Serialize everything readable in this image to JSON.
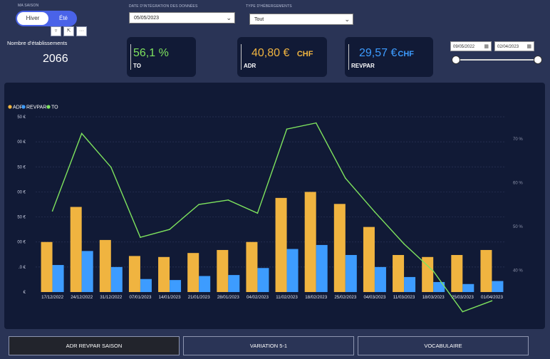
{
  "saison": {
    "label": "MA SAISON",
    "hiver": "Hiver",
    "ete": "Été"
  },
  "integration": {
    "label": "DATE D'INTÉGRATION DES DONNÉES",
    "value": "05/05/2023"
  },
  "hebergement": {
    "label": "TYPE D'HÉBERGEMENTS",
    "value": "Tout"
  },
  "etablissements": {
    "label": "Nombre d'établissements",
    "value": "2066"
  },
  "kpis": [
    {
      "value": "56,1 %",
      "unit": "",
      "label": "TO",
      "color": "#7ee35e",
      "unit_color": "#7ee35e"
    },
    {
      "value": "40,80 €",
      "unit": "CHF",
      "label": "ADR",
      "color": "#f0b440",
      "unit_color": "#f0b440"
    },
    {
      "value": "29,57 €",
      "unit": "CHF",
      "label": "REVPAR",
      "color": "#3d9cff",
      "unit_color": "#3d9cff"
    }
  ],
  "date_range": {
    "start": "09/05/2022",
    "end": "02/04/2023",
    "start_fraction": 0,
    "end_fraction": 1
  },
  "nav": [
    "ADR REVPAR SAISON",
    "VARIATION 5-1",
    "VOCABULAIRE"
  ],
  "colors": {
    "adr": "#f0b440",
    "revpar": "#3d9cff",
    "to": "#7ee35e",
    "background": "#2a3456",
    "panel": "#111a36"
  },
  "chart_data": {
    "type": "bar",
    "categories": [
      "17/12/2022",
      "24/12/2022",
      "31/12/2022",
      "07/01/2023",
      "14/01/2023",
      "21/01/2023",
      "28/01/2023",
      "04/02/2023",
      "11/02/2023",
      "18/02/2023",
      "25/02/2023",
      "04/03/2023",
      "11/03/2023",
      "18/03/2023",
      "25/03/2023",
      "01/04/2023"
    ],
    "series": [
      {
        "name": "ADR",
        "type": "bar",
        "axis": "left",
        "values": [
          50,
          85,
          52,
          36,
          35,
          39,
          42,
          50,
          94,
          100,
          88,
          65,
          37,
          35,
          37,
          42
        ]
      },
      {
        "name": "REVPAR",
        "type": "bar",
        "axis": "left",
        "values": [
          27,
          41,
          25,
          13,
          12,
          16,
          17,
          24,
          43,
          47,
          37,
          25,
          15,
          10,
          8,
          11
        ]
      },
      {
        "name": "TO",
        "type": "line",
        "axis": "right",
        "values": [
          53.5,
          71.2,
          63.5,
          47.5,
          49.3,
          55,
          56,
          53,
          72.2,
          73.6,
          61,
          53.3,
          46,
          39.8,
          30.5,
          33
        ]
      }
    ],
    "yleft_ticks": [
      "€",
      ".0 €",
      "00 €",
      "50 €",
      "00 €",
      "50 €",
      "00 €",
      "50 €"
    ],
    "yright_ticks": [
      "40 %",
      "50 %",
      "60 %",
      "70 %"
    ],
    "ylim_left": [
      0,
      175
    ],
    "ylim_right": [
      35,
      75
    ],
    "legend_position": "top-left",
    "grid": true
  }
}
